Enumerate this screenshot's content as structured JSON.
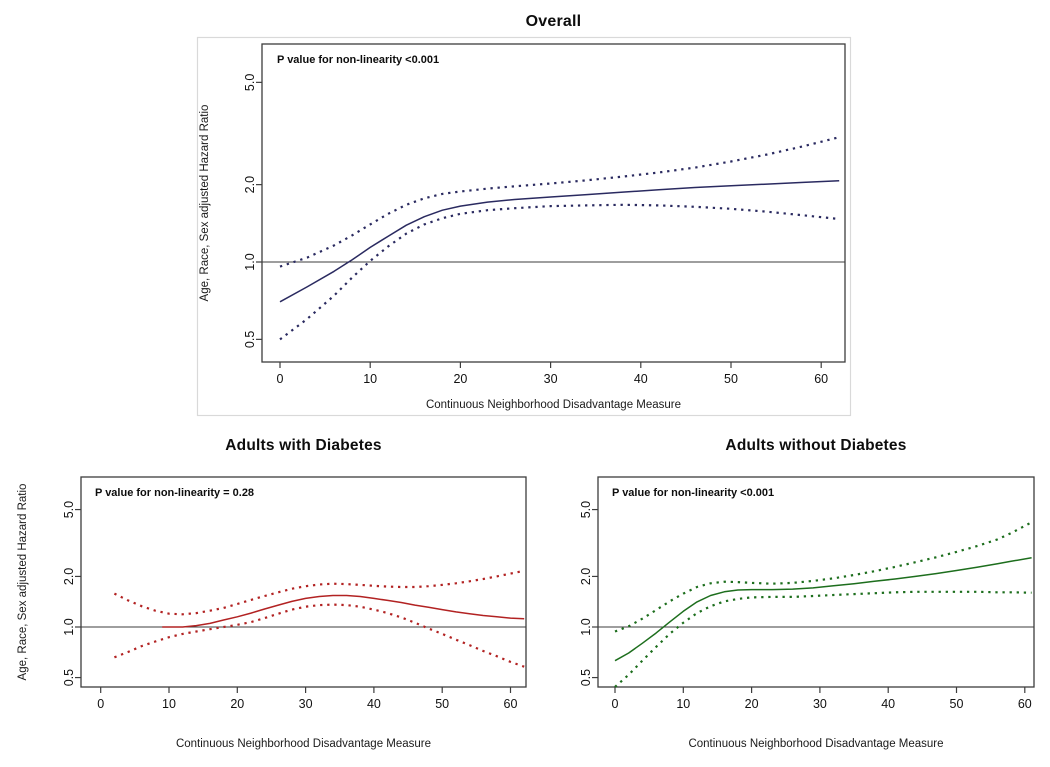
{
  "chart_data": [
    {
      "id": "overall",
      "type": "line",
      "title": "Overall",
      "annotation": "P value for non-linearity <0.001",
      "xlabel": "Continuous Neighborhood Disadvantage Measure",
      "ylabel": "Age, Race, Sex adjusted Hazard Ratio",
      "y_scale": "log",
      "xlim": [
        -2,
        62.6
      ],
      "ylim": [
        0.41,
        7.0
      ],
      "x_ticks": [
        0,
        10,
        20,
        30,
        40,
        50,
        60
      ],
      "y_ticks": [
        {
          "v": 0.5,
          "label": "0.5"
        },
        {
          "v": 1,
          "label": "1.0"
        },
        {
          "v": 2,
          "label": "2.0"
        },
        {
          "v": 5,
          "label": "5.0"
        }
      ],
      "reference_line": 1.0,
      "color": "#2a2a60",
      "grid": false,
      "legend": "none",
      "series": [
        {
          "name": "adjusted hazard ratio",
          "style": "solid",
          "points": [
            [
              0,
              0.7
            ],
            [
              3,
              0.8
            ],
            [
              6,
              0.92
            ],
            [
              8,
              1.02
            ],
            [
              10,
              1.14
            ],
            [
              12,
              1.26
            ],
            [
              14,
              1.39
            ],
            [
              16,
              1.5
            ],
            [
              18,
              1.59
            ],
            [
              20,
              1.65
            ],
            [
              23,
              1.71
            ],
            [
              26,
              1.75
            ],
            [
              30,
              1.79
            ],
            [
              34,
              1.83
            ],
            [
              38,
              1.87
            ],
            [
              42,
              1.91
            ],
            [
              46,
              1.95
            ],
            [
              50,
              1.98
            ],
            [
              54,
              2.01
            ],
            [
              58,
              2.04
            ],
            [
              62,
              2.07
            ]
          ]
        },
        {
          "name": "upper 95% CI",
          "style": "dotted",
          "points": [
            [
              0,
              0.96
            ],
            [
              3,
              1.04
            ],
            [
              6,
              1.16
            ],
            [
              8,
              1.27
            ],
            [
              10,
              1.4
            ],
            [
              12,
              1.54
            ],
            [
              14,
              1.67
            ],
            [
              16,
              1.77
            ],
            [
              18,
              1.84
            ],
            [
              20,
              1.88
            ],
            [
              23,
              1.93
            ],
            [
              26,
              1.97
            ],
            [
              30,
              2.02
            ],
            [
              34,
              2.08
            ],
            [
              38,
              2.15
            ],
            [
              42,
              2.23
            ],
            [
              46,
              2.33
            ],
            [
              50,
              2.46
            ],
            [
              54,
              2.62
            ],
            [
              58,
              2.82
            ],
            [
              62,
              3.06
            ]
          ]
        },
        {
          "name": "lower 95% CI",
          "style": "dotted",
          "points": [
            [
              0,
              0.5
            ],
            [
              3,
              0.6
            ],
            [
              6,
              0.74
            ],
            [
              8,
              0.87
            ],
            [
              10,
              1.01
            ],
            [
              12,
              1.15
            ],
            [
              14,
              1.29
            ],
            [
              16,
              1.4
            ],
            [
              18,
              1.48
            ],
            [
              20,
              1.54
            ],
            [
              23,
              1.59
            ],
            [
              26,
              1.62
            ],
            [
              30,
              1.65
            ],
            [
              34,
              1.66
            ],
            [
              38,
              1.67
            ],
            [
              42,
              1.66
            ],
            [
              46,
              1.64
            ],
            [
              50,
              1.61
            ],
            [
              54,
              1.57
            ],
            [
              58,
              1.52
            ],
            [
              62,
              1.47
            ]
          ]
        }
      ]
    },
    {
      "id": "with_diabetes",
      "type": "line",
      "title": "Adults with Diabetes",
      "annotation": "P value for non-linearity = 0.28",
      "xlabel": "Continuous Neighborhood Disadvantage Measure",
      "ylabel": "Age, Race, Sex adjusted Hazard Ratio",
      "y_scale": "log",
      "xlim": [
        -3,
        62.3
      ],
      "ylim": [
        0.44,
        7.8
      ],
      "x_ticks": [
        0,
        10,
        20,
        30,
        40,
        50,
        60
      ],
      "y_ticks": [
        {
          "v": 0.5,
          "label": "0.5"
        },
        {
          "v": 1,
          "label": "1.0"
        },
        {
          "v": 2,
          "label": "2.0"
        },
        {
          "v": 5,
          "label": "5.0"
        }
      ],
      "reference_line": 1.0,
      "color": "#b22222",
      "grid": false,
      "legend": "none",
      "series": [
        {
          "name": "adjusted hazard ratio",
          "style": "solid",
          "points": [
            [
              9,
              1.0
            ],
            [
              12,
              1.0
            ],
            [
              14,
              1.02
            ],
            [
              16,
              1.05
            ],
            [
              18,
              1.1
            ],
            [
              20,
              1.15
            ],
            [
              22,
              1.21
            ],
            [
              24,
              1.28
            ],
            [
              26,
              1.35
            ],
            [
              28,
              1.42
            ],
            [
              30,
              1.48
            ],
            [
              32,
              1.52
            ],
            [
              34,
              1.54
            ],
            [
              36,
              1.54
            ],
            [
              38,
              1.52
            ],
            [
              40,
              1.48
            ],
            [
              42,
              1.44
            ],
            [
              44,
              1.4
            ],
            [
              46,
              1.35
            ],
            [
              48,
              1.31
            ],
            [
              50,
              1.27
            ],
            [
              52,
              1.23
            ],
            [
              54,
              1.2
            ],
            [
              56,
              1.17
            ],
            [
              58,
              1.15
            ],
            [
              60,
              1.13
            ],
            [
              62,
              1.12
            ]
          ]
        },
        {
          "name": "upper 95% CI",
          "style": "dotted",
          "points": [
            [
              2,
              1.58
            ],
            [
              4,
              1.44
            ],
            [
              6,
              1.33
            ],
            [
              8,
              1.25
            ],
            [
              10,
              1.2
            ],
            [
              12,
              1.19
            ],
            [
              14,
              1.21
            ],
            [
              16,
              1.25
            ],
            [
              18,
              1.3
            ],
            [
              20,
              1.37
            ],
            [
              22,
              1.45
            ],
            [
              24,
              1.53
            ],
            [
              26,
              1.61
            ],
            [
              28,
              1.69
            ],
            [
              30,
              1.75
            ],
            [
              32,
              1.79
            ],
            [
              34,
              1.81
            ],
            [
              36,
              1.8
            ],
            [
              38,
              1.78
            ],
            [
              40,
              1.76
            ],
            [
              42,
              1.74
            ],
            [
              44,
              1.73
            ],
            [
              46,
              1.73
            ],
            [
              48,
              1.75
            ],
            [
              50,
              1.78
            ],
            [
              52,
              1.82
            ],
            [
              54,
              1.87
            ],
            [
              56,
              1.93
            ],
            [
              58,
              2.0
            ],
            [
              60,
              2.08
            ],
            [
              62,
              2.16
            ]
          ]
        },
        {
          "name": "lower 95% CI",
          "style": "dotted",
          "points": [
            [
              2,
              0.66
            ],
            [
              4,
              0.71
            ],
            [
              6,
              0.77
            ],
            [
              8,
              0.82
            ],
            [
              10,
              0.87
            ],
            [
              12,
              0.91
            ],
            [
              14,
              0.94
            ],
            [
              16,
              0.97
            ],
            [
              18,
              1.0
            ],
            [
              20,
              1.03
            ],
            [
              22,
              1.07
            ],
            [
              24,
              1.13
            ],
            [
              26,
              1.2
            ],
            [
              28,
              1.27
            ],
            [
              30,
              1.32
            ],
            [
              32,
              1.35
            ],
            [
              34,
              1.36
            ],
            [
              36,
              1.35
            ],
            [
              38,
              1.32
            ],
            [
              40,
              1.27
            ],
            [
              42,
              1.21
            ],
            [
              44,
              1.14
            ],
            [
              46,
              1.06
            ],
            [
              48,
              0.98
            ],
            [
              50,
              0.91
            ],
            [
              52,
              0.84
            ],
            [
              54,
              0.78
            ],
            [
              56,
              0.72
            ],
            [
              58,
              0.67
            ],
            [
              60,
              0.62
            ],
            [
              62,
              0.58
            ]
          ]
        }
      ]
    },
    {
      "id": "without_diabetes",
      "type": "line",
      "title": "Adults without Diabetes",
      "annotation": "P value for non-linearity <0.001",
      "xlabel": "Continuous Neighborhood Disadvantage Measure",
      "ylabel": "",
      "y_scale": "log",
      "xlim": [
        -2.5,
        61.5
      ],
      "ylim": [
        0.44,
        7.8
      ],
      "x_ticks": [
        0,
        10,
        20,
        30,
        40,
        50,
        60
      ],
      "y_ticks": [
        {
          "v": 0.5,
          "label": "0.5"
        },
        {
          "v": 1,
          "label": "1.0"
        },
        {
          "v": 2,
          "label": "2.0"
        },
        {
          "v": 5,
          "label": "5.0"
        }
      ],
      "reference_line": 1.0,
      "color": "#1d6e1d",
      "grid": false,
      "legend": "none",
      "series": [
        {
          "name": "adjusted hazard ratio",
          "style": "solid",
          "points": [
            [
              0,
              0.63
            ],
            [
              2,
              0.7
            ],
            [
              4,
              0.8
            ],
            [
              6,
              0.92
            ],
            [
              8,
              1.07
            ],
            [
              10,
              1.24
            ],
            [
              12,
              1.41
            ],
            [
              14,
              1.54
            ],
            [
              16,
              1.62
            ],
            [
              18,
              1.66
            ],
            [
              20,
              1.67
            ],
            [
              23,
              1.67
            ],
            [
              26,
              1.68
            ],
            [
              29,
              1.71
            ],
            [
              32,
              1.76
            ],
            [
              35,
              1.81
            ],
            [
              38,
              1.87
            ],
            [
              41,
              1.93
            ],
            [
              44,
              2.0
            ],
            [
              47,
              2.08
            ],
            [
              50,
              2.17
            ],
            [
              53,
              2.27
            ],
            [
              56,
              2.38
            ],
            [
              58,
              2.46
            ],
            [
              61,
              2.58
            ]
          ]
        },
        {
          "name": "upper 95% CI",
          "style": "dotted",
          "points": [
            [
              0,
              0.94
            ],
            [
              2,
              1.01
            ],
            [
              4,
              1.12
            ],
            [
              6,
              1.26
            ],
            [
              8,
              1.42
            ],
            [
              10,
              1.58
            ],
            [
              12,
              1.73
            ],
            [
              14,
              1.82
            ],
            [
              16,
              1.86
            ],
            [
              18,
              1.85
            ],
            [
              20,
              1.83
            ],
            [
              23,
              1.81
            ],
            [
              26,
              1.83
            ],
            [
              29,
              1.88
            ],
            [
              32,
              1.95
            ],
            [
              35,
              2.04
            ],
            [
              38,
              2.15
            ],
            [
              41,
              2.28
            ],
            [
              44,
              2.43
            ],
            [
              47,
              2.6
            ],
            [
              50,
              2.8
            ],
            [
              53,
              3.03
            ],
            [
              56,
              3.32
            ],
            [
              58,
              3.62
            ],
            [
              61,
              4.2
            ]
          ]
        },
        {
          "name": "lower 95% CI",
          "style": "dotted",
          "points": [
            [
              0,
              0.44
            ],
            [
              2,
              0.52
            ],
            [
              4,
              0.63
            ],
            [
              6,
              0.76
            ],
            [
              8,
              0.91
            ],
            [
              10,
              1.06
            ],
            [
              12,
              1.21
            ],
            [
              14,
              1.33
            ],
            [
              16,
              1.42
            ],
            [
              18,
              1.47
            ],
            [
              20,
              1.5
            ],
            [
              23,
              1.51
            ],
            [
              26,
              1.51
            ],
            [
              29,
              1.53
            ],
            [
              32,
              1.55
            ],
            [
              35,
              1.57
            ],
            [
              38,
              1.59
            ],
            [
              41,
              1.61
            ],
            [
              44,
              1.62
            ],
            [
              47,
              1.62
            ],
            [
              50,
              1.62
            ],
            [
              53,
              1.62
            ],
            [
              56,
              1.61
            ],
            [
              58,
              1.61
            ],
            [
              61,
              1.6
            ]
          ]
        }
      ]
    }
  ]
}
